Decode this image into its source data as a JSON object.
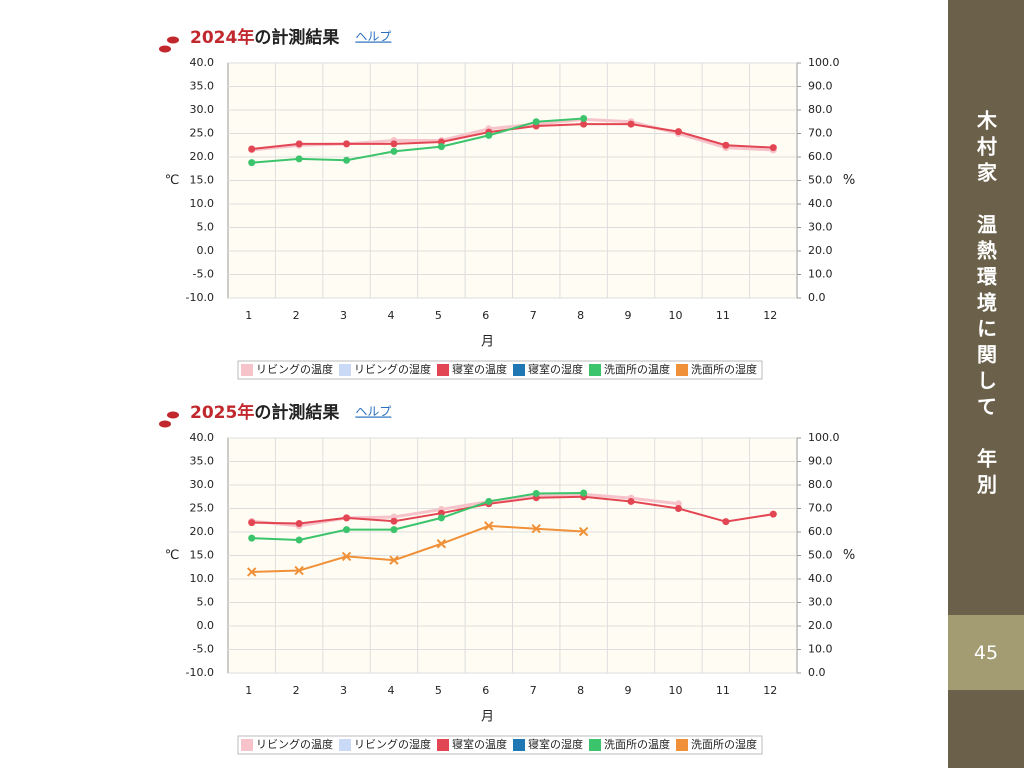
{
  "sidebar": {
    "heading": "木村家　温熱環境に関して　年別",
    "page": "45"
  },
  "chart_data": [
    {
      "type": "line",
      "title": {
        "year": "2024年",
        "text": "の計測結果"
      },
      "help": "ヘルプ",
      "ylabel": "℃",
      "y2label": "%",
      "xlabel": "月",
      "categories": [
        "1",
        "2",
        "3",
        "4",
        "5",
        "6",
        "7",
        "8",
        "9",
        "10",
        "11",
        "12"
      ],
      "ylim": [
        -10,
        40
      ],
      "yticks": [
        {
          "value": -10,
          "label": "-10.0"
        },
        {
          "value": -5,
          "label": "-5.0"
        },
        {
          "value": 0,
          "label": "0.0"
        },
        {
          "value": 5,
          "label": "5.0"
        },
        {
          "value": 10,
          "label": "10.0"
        },
        {
          "value": 15,
          "label": "15.0"
        },
        {
          "value": 20,
          "label": "20.0"
        },
        {
          "value": 25,
          "label": "25.0"
        },
        {
          "value": 30,
          "label": "30.0"
        },
        {
          "value": 35,
          "label": "35.0"
        },
        {
          "value": 40,
          "label": "40.0"
        }
      ],
      "y2lim": [
        0,
        100
      ],
      "y2ticks": [
        {
          "value": 0,
          "label": "0.0"
        },
        {
          "value": 10,
          "label": "10.0"
        },
        {
          "value": 20,
          "label": "20.0"
        },
        {
          "value": 30,
          "label": "30.0"
        },
        {
          "value": 40,
          "label": "40.0"
        },
        {
          "value": 50,
          "label": "50.0"
        },
        {
          "value": 60,
          "label": "60.0"
        },
        {
          "value": 70,
          "label": "70.0"
        },
        {
          "value": 80,
          "label": "80.0"
        },
        {
          "value": 90,
          "label": "90.0"
        },
        {
          "value": 100,
          "label": "100.0"
        }
      ],
      "grid": true,
      "series": [
        {
          "name": "リビングの温度",
          "color": "#f6c3ca",
          "values": [
            21.5,
            22.5,
            22.8,
            23.5,
            23.5,
            26,
            27,
            28,
            27.5,
            25,
            22,
            21.5
          ]
        },
        {
          "name": "リビングの湿度",
          "color": "#c9d9f6",
          "axis": "y2",
          "values": [
            null,
            null,
            null,
            null,
            null,
            null,
            null,
            null,
            null,
            null,
            null,
            null
          ]
        },
        {
          "name": "寝室の温度",
          "color": "#e34653",
          "values": [
            21.7,
            22.8,
            22.8,
            22.8,
            23.2,
            25.3,
            26.6,
            27,
            27,
            25.4,
            22.5,
            22
          ]
        },
        {
          "name": "寝室の湿度",
          "color": "#1f77b4",
          "axis": "y2",
          "values": [
            null,
            null,
            null,
            null,
            null,
            null,
            null,
            null,
            null,
            null,
            null,
            null
          ]
        },
        {
          "name": "洗面所の温度",
          "color": "#3cc46c",
          "values": [
            18.8,
            19.6,
            19.3,
            21.2,
            22.2,
            24.6,
            27.5,
            28.2,
            null,
            null,
            null,
            null
          ]
        },
        {
          "name": "洗面所の湿度",
          "color": "#f0913a",
          "axis": "y2",
          "values": [
            null,
            null,
            null,
            null,
            null,
            null,
            null,
            null,
            null,
            null,
            null,
            null
          ]
        }
      ]
    },
    {
      "type": "line",
      "title": {
        "year": "2025年",
        "text": "の計測結果"
      },
      "help": "ヘルプ",
      "ylabel": "℃",
      "y2label": "%",
      "xlabel": "月",
      "categories": [
        "1",
        "2",
        "3",
        "4",
        "5",
        "6",
        "7",
        "8",
        "9",
        "10",
        "11",
        "12"
      ],
      "ylim": [
        -10,
        40
      ],
      "yticks": [
        {
          "value": -10,
          "label": "-10.0"
        },
        {
          "value": -5,
          "label": "-5.0"
        },
        {
          "value": 0,
          "label": "0.0"
        },
        {
          "value": 5,
          "label": "5.0"
        },
        {
          "value": 10,
          "label": "10.0"
        },
        {
          "value": 15,
          "label": "15.0"
        },
        {
          "value": 20,
          "label": "20.0"
        },
        {
          "value": 25,
          "label": "25.0"
        },
        {
          "value": 30,
          "label": "30.0"
        },
        {
          "value": 35,
          "label": "35.0"
        },
        {
          "value": 40,
          "label": "40.0"
        }
      ],
      "y2lim": [
        0,
        100
      ],
      "y2ticks": [
        {
          "value": 0,
          "label": "0.0"
        },
        {
          "value": 10,
          "label": "10.0"
        },
        {
          "value": 20,
          "label": "20.0"
        },
        {
          "value": 30,
          "label": "30.0"
        },
        {
          "value": 40,
          "label": "40.0"
        },
        {
          "value": 50,
          "label": "50.0"
        },
        {
          "value": 60,
          "label": "60.0"
        },
        {
          "value": 70,
          "label": "70.0"
        },
        {
          "value": 80,
          "label": "80.0"
        },
        {
          "value": 90,
          "label": "90.0"
        },
        {
          "value": 100,
          "label": "100.0"
        }
      ],
      "grid": true,
      "series": [
        {
          "name": "リビングの温度",
          "color": "#f6c3ca",
          "values": [
            22.3,
            21.3,
            23,
            23.2,
            24.8,
            26.5,
            27.8,
            28,
            27.2,
            26,
            null,
            null
          ]
        },
        {
          "name": "リビングの湿度",
          "color": "#c9d9f6",
          "axis": "y2",
          "values": [
            null,
            null,
            null,
            null,
            null,
            null,
            null,
            null,
            null,
            null,
            null,
            null
          ]
        },
        {
          "name": "寝室の温度",
          "color": "#e34653",
          "values": [
            22,
            21.8,
            23,
            22.3,
            24,
            26,
            27.3,
            27.5,
            26.5,
            25,
            22.2,
            23.8
          ]
        },
        {
          "name": "寝室の湿度",
          "color": "#1f77b4",
          "axis": "y2",
          "values": [
            null,
            null,
            null,
            null,
            null,
            null,
            null,
            null,
            null,
            null,
            null,
            null
          ]
        },
        {
          "name": "洗面所の温度",
          "color": "#3cc46c",
          "values": [
            18.7,
            18.3,
            20.5,
            20.5,
            23,
            26.5,
            28.2,
            28.3,
            null,
            null,
            null,
            null
          ]
        },
        {
          "name": "洗面所の湿度",
          "color": "#f0913a",
          "axis": "y2",
          "values": [
            43,
            43.6,
            49.6,
            48,
            55,
            62.6,
            61.4,
            60.2,
            null,
            null,
            null,
            null
          ]
        }
      ]
    }
  ]
}
